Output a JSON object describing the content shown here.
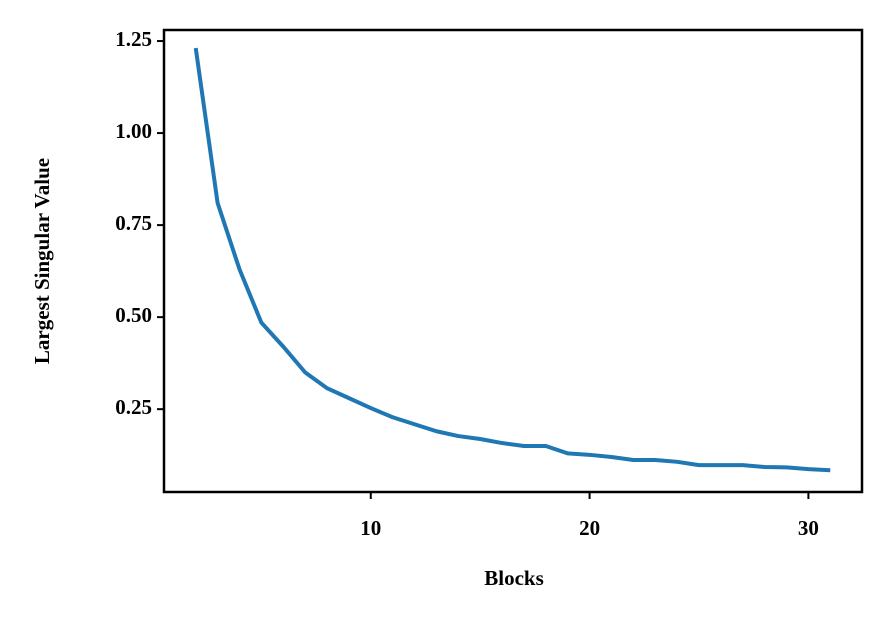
{
  "chart_data": {
    "type": "line",
    "xlabel": "Blocks",
    "ylabel": "Largest Singular Value",
    "x": [
      2,
      3,
      4,
      5,
      6,
      7,
      8,
      9,
      10,
      11,
      12,
      13,
      14,
      15,
      16,
      17,
      18,
      19,
      20,
      21,
      22,
      23,
      24,
      25,
      26,
      27,
      28,
      29,
      30,
      31
    ],
    "values": [
      1.231,
      0.81,
      0.63,
      0.485,
      0.42,
      0.35,
      0.307,
      0.28,
      0.253,
      0.228,
      0.209,
      0.19,
      0.177,
      0.169,
      0.158,
      0.15,
      0.15,
      0.13,
      0.126,
      0.12,
      0.112,
      0.112,
      0.107,
      0.098,
      0.098,
      0.098,
      0.093,
      0.092,
      0.087,
      0.084
    ],
    "color": "#1f77b4",
    "xlim": [
      0.55,
      32.45
    ],
    "xticks": [
      10,
      20,
      30
    ],
    "ylim": [
      0.025,
      1.28
    ],
    "yticks": [
      {
        "value": 0.25,
        "label": "0.25"
      },
      {
        "value": 0.5,
        "label": "0.50"
      },
      {
        "value": 0.75,
        "label": "0.75"
      },
      {
        "value": 1,
        "label": "1.00"
      },
      {
        "value": 1.25,
        "label": "1.25"
      }
    ],
    "grid": false
  }
}
